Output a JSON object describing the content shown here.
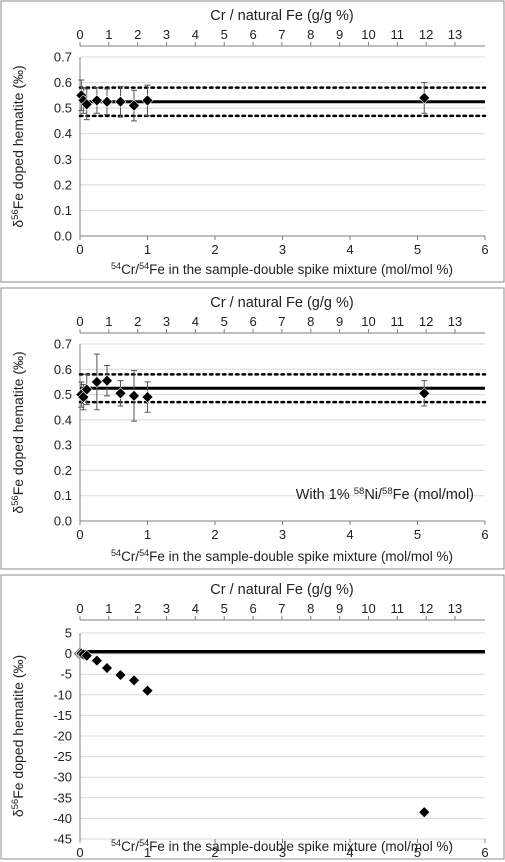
{
  "chart_data": [
    {
      "type": "scatter",
      "title": "",
      "top_axis_label": "Cr / natural Fe (g/g %)",
      "top_ticks": [
        "0",
        "1",
        "2",
        "3",
        "4",
        "5",
        "6",
        "7",
        "8",
        "9",
        "10",
        "11",
        "12",
        "13"
      ],
      "top_per_bottom_unit": 2.34,
      "xlabel_iso1": "54",
      "xlabel_mid": "Cr/",
      "xlabel_iso2": "54",
      "xlabel_rest": "Fe in the sample-double spike mixture (mol/mol %)",
      "ylabel_pre": "δ",
      "ylabel_iso": "56",
      "ylabel_rest": "Fe doped hematite (‰)",
      "xlim": [
        0,
        6
      ],
      "xticks": [
        "0",
        "1",
        "2",
        "3",
        "4",
        "5",
        "6"
      ],
      "ylim": [
        0,
        0.7
      ],
      "yticks": [
        "0.0",
        "0.1",
        "0.2",
        "0.3",
        "0.4",
        "0.5",
        "0.6",
        "0.7"
      ],
      "grid": "horizontal",
      "annotation": "",
      "reference_line": 0.525,
      "reference_band": [
        0.47,
        0.58
      ],
      "x": [
        0.02,
        0.05,
        0.1,
        0.25,
        0.4,
        0.6,
        0.8,
        1.0,
        5.1
      ],
      "y": [
        0.55,
        0.53,
        0.515,
        0.53,
        0.525,
        0.525,
        0.51,
        0.53,
        0.54
      ],
      "err": [
        0.06,
        0.05,
        0.06,
        0.05,
        0.05,
        0.06,
        0.06,
        0.06,
        0.06
      ]
    },
    {
      "type": "scatter",
      "title": "",
      "top_axis_label": "Cr / natural Fe (g/g %)",
      "top_ticks": [
        "0",
        "1",
        "2",
        "3",
        "4",
        "5",
        "6",
        "7",
        "8",
        "9",
        "10",
        "11",
        "12",
        "13"
      ],
      "top_per_bottom_unit": 2.34,
      "xlabel_iso1": "54",
      "xlabel_mid": "Cr/",
      "xlabel_iso2": "54",
      "xlabel_rest": "Fe in the sample-double spike mixture (mol/mol %)",
      "ylabel_pre": "δ",
      "ylabel_iso": "56",
      "ylabel_rest": "Fe doped hematite (‰)",
      "xlim": [
        0,
        6
      ],
      "xticks": [
        "0",
        "1",
        "2",
        "3",
        "4",
        "5",
        "6"
      ],
      "ylim": [
        0,
        0.7
      ],
      "yticks": [
        "0.0",
        "0.1",
        "0.2",
        "0.3",
        "0.4",
        "0.5",
        "0.6",
        "0.7"
      ],
      "grid": "horizontal",
      "annotation_pre": "With 1% ",
      "annotation_iso1": "58",
      "annotation_mid": "Ni/",
      "annotation_iso2": "58",
      "annotation_rest": "Fe (mol/mol)",
      "reference_line": 0.525,
      "reference_band": [
        0.47,
        0.58
      ],
      "x": [
        0.02,
        0.05,
        0.1,
        0.25,
        0.4,
        0.6,
        0.8,
        1.0,
        5.1
      ],
      "y": [
        0.5,
        0.49,
        0.52,
        0.55,
        0.555,
        0.505,
        0.495,
        0.49,
        0.505
      ],
      "err": [
        0.05,
        0.05,
        0.06,
        0.11,
        0.06,
        0.05,
        0.1,
        0.06,
        0.05
      ]
    },
    {
      "type": "scatter",
      "title": "",
      "top_axis_label": "Cr / natural Fe (g/g %)",
      "top_ticks": [
        "0",
        "1",
        "2",
        "3",
        "4",
        "5",
        "6",
        "7",
        "8",
        "9",
        "10",
        "11",
        "12",
        "13"
      ],
      "top_per_bottom_unit": 2.34,
      "xlabel_iso1": "54",
      "xlabel_mid": "Cr/",
      "xlabel_iso2": "54",
      "xlabel_rest": "Fe in the sample-double spike mixture (mol/mol %)",
      "ylabel_pre": "δ",
      "ylabel_iso": "56",
      "ylabel_rest": "Fe doped hematite (‰)",
      "xlim": [
        0,
        6
      ],
      "xticks": [
        "0",
        "1",
        "2",
        "3",
        "4",
        "5",
        "6"
      ],
      "ylim": [
        -45,
        5
      ],
      "yticks": [
        "5",
        "0",
        "-5",
        "-10",
        "-15",
        "-20",
        "-25",
        "-30",
        "-35",
        "-40",
        "-45"
      ],
      "grid": "horizontal",
      "annotation": "",
      "reference_line": 0.5,
      "x": [
        0.0,
        0.02,
        0.05,
        0.1,
        0.25,
        0.4,
        0.6,
        0.8,
        1.0,
        5.1
      ],
      "y": [
        0.0,
        0.0,
        -0.2,
        -0.5,
        -1.7,
        -3.5,
        -5.2,
        -6.5,
        -9.0,
        -38.5
      ],
      "open": [
        true,
        false,
        false,
        false,
        false,
        false,
        false,
        false,
        false,
        false
      ]
    }
  ]
}
